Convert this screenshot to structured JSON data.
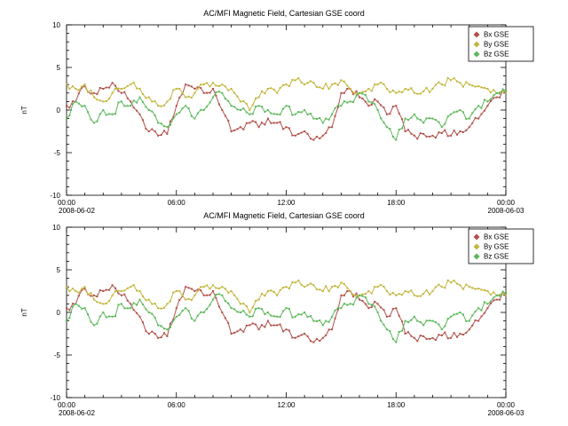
{
  "page": {
    "background": "#ffffff"
  },
  "chart_data": [
    {
      "type": "line",
      "title": "AC/MFI  Magnetic Field, Cartesian GSE coord",
      "xlabel": "",
      "ylabel": "nT",
      "ylim": [
        -10,
        10
      ],
      "yticks": [
        -10,
        -5,
        0,
        5,
        10
      ],
      "xlim_hours": [
        0,
        24
      ],
      "x_step_hours": 0.5,
      "x_start": "2008-06-02 00:00",
      "x_end": "2008-06-03 00:00",
      "grid": false,
      "legend_position": "top-right",
      "xticks": [
        {
          "hour": 0,
          "label": "00:00",
          "date": "2008-06-02"
        },
        {
          "hour": 6,
          "label": "06:00"
        },
        {
          "hour": 12,
          "label": "12:00"
        },
        {
          "hour": 18,
          "label": "18:00"
        },
        {
          "hour": 24,
          "label": "00:00",
          "date": "2008-06-03"
        }
      ],
      "series": [
        {
          "name": "Bx GSE",
          "color": "#b25049",
          "values": [
            0.5,
            1,
            2.8,
            2,
            2.5,
            3.2,
            2,
            1,
            -0.5,
            -2.5,
            -3,
            -2.8,
            0.5,
            3,
            2.5,
            2,
            2.5,
            0,
            -2.5,
            -2,
            -1.5,
            -2,
            -1,
            -1.5,
            -2,
            -3,
            -2.5,
            -3.5,
            -3,
            -2,
            2,
            2.5,
            1.5,
            0.5,
            1,
            -0.5,
            0.5,
            -2.5,
            -3,
            -2.8,
            -3,
            -2.7,
            -3,
            -2.5,
            -2,
            -1,
            0.5,
            1.5,
            2.2
          ]
        },
        {
          "name": "By GSE",
          "color": "#c3b63c",
          "values": [
            3,
            2.5,
            3,
            1.5,
            1,
            2,
            2.5,
            3,
            2.5,
            1.5,
            0.5,
            1,
            2.5,
            1.5,
            2,
            3,
            3.2,
            3,
            2.5,
            1,
            0,
            1.5,
            2.5,
            2,
            3,
            3.5,
            3,
            3.2,
            2.5,
            3,
            3.5,
            2.5,
            2,
            2.5,
            3,
            2.5,
            2,
            2.5,
            2,
            2.2,
            2.5,
            3,
            3.5,
            3.2,
            3,
            2.8,
            2.5,
            2,
            2
          ]
        },
        {
          "name": "Bz GSE",
          "color": "#5cb85a",
          "values": [
            -1,
            1,
            0.5,
            -1.5,
            0,
            -0.5,
            1,
            0.5,
            1.5,
            0,
            -1.5,
            -2,
            -0.5,
            0.5,
            -1,
            0,
            1.5,
            2,
            0.5,
            0,
            -0.5,
            0.5,
            0,
            -0.5,
            0.5,
            -0.5,
            0,
            -1,
            -1.5,
            -0.5,
            0.5,
            1,
            2,
            1,
            0,
            -2,
            -3.5,
            -1,
            -0.5,
            -1.5,
            -1,
            -2,
            -0.5,
            0,
            -1,
            0.5,
            1,
            2,
            2.2
          ]
        }
      ]
    },
    {
      "type": "line",
      "title": "AC/MFI  Magnetic Field, Cartesian GSE coord",
      "xlabel": "",
      "ylabel": "nT",
      "ylim": [
        -10,
        10
      ],
      "yticks": [
        -10,
        -5,
        0,
        5,
        10
      ],
      "xlim_hours": [
        0,
        24
      ],
      "x_step_hours": 0.5,
      "x_start": "2008-06-02 00:00",
      "x_end": "2008-06-03 00:00",
      "grid": false,
      "legend_position": "top-right",
      "xticks": [
        {
          "hour": 0,
          "label": "00:00",
          "date": "2008-06-02"
        },
        {
          "hour": 6,
          "label": "06:00"
        },
        {
          "hour": 12,
          "label": "12:00"
        },
        {
          "hour": 18,
          "label": "18:00"
        },
        {
          "hour": 24,
          "label": "00:00",
          "date": "2008-06-03"
        }
      ],
      "series": [
        {
          "name": "Bx GSE",
          "color": "#b25049",
          "values": [
            0.5,
            1,
            2.8,
            2,
            2.5,
            3.2,
            2,
            1,
            -0.5,
            -2.5,
            -3,
            -2.8,
            0.5,
            3,
            2.5,
            2,
            2.5,
            0,
            -2.5,
            -2,
            -1.5,
            -2,
            -1,
            -1.5,
            -2,
            -3,
            -2.5,
            -3.5,
            -3,
            -2,
            2,
            2.5,
            1.5,
            0.5,
            1,
            -0.5,
            0.5,
            -2.5,
            -3,
            -2.8,
            -3,
            -2.7,
            -3,
            -2.5,
            -2,
            -1,
            0.5,
            1.5,
            2.2
          ]
        },
        {
          "name": "By GSE",
          "color": "#c3b63c",
          "values": [
            3,
            2.5,
            3,
            1.5,
            1,
            2,
            2.5,
            3,
            2.5,
            1.5,
            0.5,
            1,
            2.5,
            1.5,
            2,
            3,
            3.2,
            3,
            2.5,
            1,
            0,
            1.5,
            2.5,
            2,
            3,
            3.5,
            3,
            3.2,
            2.5,
            3,
            3.5,
            2.5,
            2,
            2.5,
            3,
            2.5,
            2,
            2.5,
            2,
            2.2,
            2.5,
            3,
            3.5,
            3.2,
            3,
            2.8,
            2.5,
            2,
            2
          ]
        },
        {
          "name": "Bz GSE",
          "color": "#5cb85a",
          "values": [
            -1,
            1,
            0.5,
            -1.5,
            0,
            -0.5,
            1,
            0.5,
            1.5,
            0,
            -1.5,
            -2,
            -0.5,
            0.5,
            -1,
            0,
            1.5,
            2,
            0.5,
            0,
            -0.5,
            0.5,
            0,
            -0.5,
            0.5,
            -0.5,
            0,
            -1,
            -1.5,
            -0.5,
            0.5,
            1,
            2,
            1,
            0,
            -2,
            -3.5,
            -1,
            -0.5,
            -1.5,
            -1,
            -2,
            -0.5,
            0,
            -1,
            0.5,
            1,
            2,
            2.2
          ]
        }
      ]
    }
  ]
}
